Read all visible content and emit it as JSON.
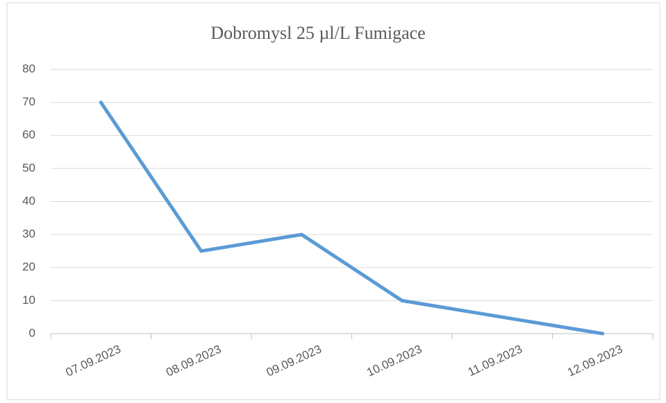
{
  "chart_data": {
    "type": "line",
    "title": "Dobromysl 25 µl/L Fumigace",
    "categories": [
      "07.09.2023",
      "08.09.2023",
      "09.09.2023",
      "10.09.2023",
      "11.09.2023",
      "12.09.2023"
    ],
    "series": [
      {
        "name": "Dobromysl 25 µl/L Fumigace",
        "color": "#5b9bd5",
        "values": [
          70,
          25,
          30,
          10,
          5,
          0
        ]
      }
    ],
    "ylim": [
      0,
      80
    ],
    "yticks": [
      0,
      10,
      20,
      30,
      40,
      50,
      60,
      70,
      80
    ],
    "grid": true
  }
}
